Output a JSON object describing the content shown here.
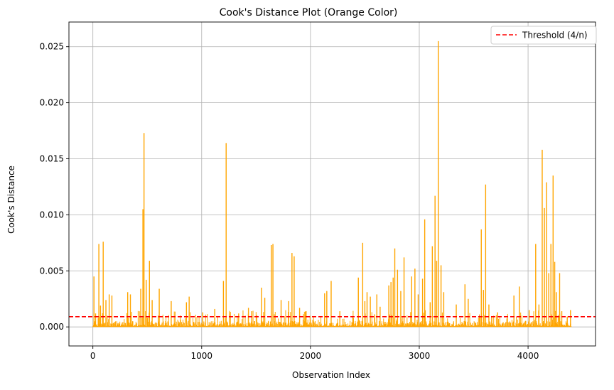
{
  "chart_data": {
    "type": "bar",
    "title": "Cook's Distance Plot (Orange Color)",
    "xlabel": "Observation Index",
    "ylabel": "Cook's Distance",
    "xlim": [
      -220,
      4620
    ],
    "ylim": [
      -0.0017,
      0.0272
    ],
    "x_ticks": [
      0,
      1000,
      2000,
      3000,
      4000
    ],
    "x_tick_labels": [
      "0",
      "1000",
      "2000",
      "3000",
      "4000"
    ],
    "y_ticks": [
      0,
      0.005,
      0.01,
      0.015,
      0.02,
      0.025
    ],
    "y_tick_labels": [
      "0.000",
      "0.005",
      "0.010",
      "0.015",
      "0.020",
      "0.025"
    ],
    "grid": true,
    "legend": {
      "position": "top-right",
      "entries": [
        "Threshold (4/n)"
      ]
    },
    "bar_color": "#FFA500",
    "threshold": {
      "name": "Threshold (4/n)",
      "value": 0.00091,
      "color": "#FF0000",
      "style": "dashed"
    },
    "n_observations": 4400,
    "baseline_level": 0.0003,
    "spikes": [
      {
        "x": 10,
        "y": 0.0045
      },
      {
        "x": 25,
        "y": 0.0012
      },
      {
        "x": 55,
        "y": 0.0074
      },
      {
        "x": 70,
        "y": 0.0019
      },
      {
        "x": 95,
        "y": 0.0076
      },
      {
        "x": 120,
        "y": 0.0024
      },
      {
        "x": 150,
        "y": 0.0029
      },
      {
        "x": 175,
        "y": 0.0028
      },
      {
        "x": 320,
        "y": 0.0031
      },
      {
        "x": 345,
        "y": 0.0029
      },
      {
        "x": 440,
        "y": 0.0034
      },
      {
        "x": 460,
        "y": 0.0105
      },
      {
        "x": 470,
        "y": 0.0173
      },
      {
        "x": 490,
        "y": 0.0042
      },
      {
        "x": 520,
        "y": 0.0059
      },
      {
        "x": 545,
        "y": 0.0024
      },
      {
        "x": 610,
        "y": 0.0034
      },
      {
        "x": 720,
        "y": 0.0023
      },
      {
        "x": 860,
        "y": 0.0022
      },
      {
        "x": 885,
        "y": 0.0027
      },
      {
        "x": 1010,
        "y": 0.0013
      },
      {
        "x": 1120,
        "y": 0.0016
      },
      {
        "x": 1200,
        "y": 0.0041
      },
      {
        "x": 1225,
        "y": 0.0164
      },
      {
        "x": 1340,
        "y": 0.0012
      },
      {
        "x": 1430,
        "y": 0.0017
      },
      {
        "x": 1460,
        "y": 0.0014
      },
      {
        "x": 1550,
        "y": 0.0035
      },
      {
        "x": 1580,
        "y": 0.0026
      },
      {
        "x": 1640,
        "y": 0.0073
      },
      {
        "x": 1655,
        "y": 0.0074
      },
      {
        "x": 1730,
        "y": 0.0024
      },
      {
        "x": 1800,
        "y": 0.0023
      },
      {
        "x": 1830,
        "y": 0.0066
      },
      {
        "x": 1850,
        "y": 0.0063
      },
      {
        "x": 1900,
        "y": 0.0017
      },
      {
        "x": 1960,
        "y": 0.0014
      },
      {
        "x": 2130,
        "y": 0.003
      },
      {
        "x": 2150,
        "y": 0.0032
      },
      {
        "x": 2190,
        "y": 0.0041
      },
      {
        "x": 2270,
        "y": 0.0014
      },
      {
        "x": 2440,
        "y": 0.0044
      },
      {
        "x": 2480,
        "y": 0.0075
      },
      {
        "x": 2500,
        "y": 0.0023
      },
      {
        "x": 2520,
        "y": 0.0031
      },
      {
        "x": 2550,
        "y": 0.0027
      },
      {
        "x": 2610,
        "y": 0.0029
      },
      {
        "x": 2640,
        "y": 0.0018
      },
      {
        "x": 2720,
        "y": 0.0037
      },
      {
        "x": 2740,
        "y": 0.004
      },
      {
        "x": 2760,
        "y": 0.0044
      },
      {
        "x": 2775,
        "y": 0.007
      },
      {
        "x": 2800,
        "y": 0.0051
      },
      {
        "x": 2830,
        "y": 0.0032
      },
      {
        "x": 2860,
        "y": 0.0062
      },
      {
        "x": 2930,
        "y": 0.0045
      },
      {
        "x": 2960,
        "y": 0.0052
      },
      {
        "x": 2990,
        "y": 0.0029
      },
      {
        "x": 3030,
        "y": 0.0043
      },
      {
        "x": 3050,
        "y": 0.0096
      },
      {
        "x": 3100,
        "y": 0.0022
      },
      {
        "x": 3120,
        "y": 0.0072
      },
      {
        "x": 3145,
        "y": 0.0117
      },
      {
        "x": 3160,
        "y": 0.0059
      },
      {
        "x": 3175,
        "y": 0.0255
      },
      {
        "x": 3200,
        "y": 0.0055
      },
      {
        "x": 3225,
        "y": 0.0031
      },
      {
        "x": 3340,
        "y": 0.002
      },
      {
        "x": 3420,
        "y": 0.0038
      },
      {
        "x": 3450,
        "y": 0.0025
      },
      {
        "x": 3570,
        "y": 0.0087
      },
      {
        "x": 3590,
        "y": 0.0033
      },
      {
        "x": 3610,
        "y": 0.0127
      },
      {
        "x": 3640,
        "y": 0.002
      },
      {
        "x": 3720,
        "y": 0.0013
      },
      {
        "x": 3870,
        "y": 0.0028
      },
      {
        "x": 3920,
        "y": 0.0036
      },
      {
        "x": 4010,
        "y": 0.0015
      },
      {
        "x": 4070,
        "y": 0.0074
      },
      {
        "x": 4100,
        "y": 0.002
      },
      {
        "x": 4130,
        "y": 0.0158
      },
      {
        "x": 4150,
        "y": 0.0106
      },
      {
        "x": 4170,
        "y": 0.0129
      },
      {
        "x": 4190,
        "y": 0.0048
      },
      {
        "x": 4210,
        "y": 0.0074
      },
      {
        "x": 4230,
        "y": 0.0135
      },
      {
        "x": 4245,
        "y": 0.0058
      },
      {
        "x": 4260,
        "y": 0.0031
      },
      {
        "x": 4290,
        "y": 0.0048
      },
      {
        "x": 4310,
        "y": 0.0014
      },
      {
        "x": 4360,
        "y": 0.0009
      },
      {
        "x": 4390,
        "y": 0.0015
      }
    ]
  }
}
